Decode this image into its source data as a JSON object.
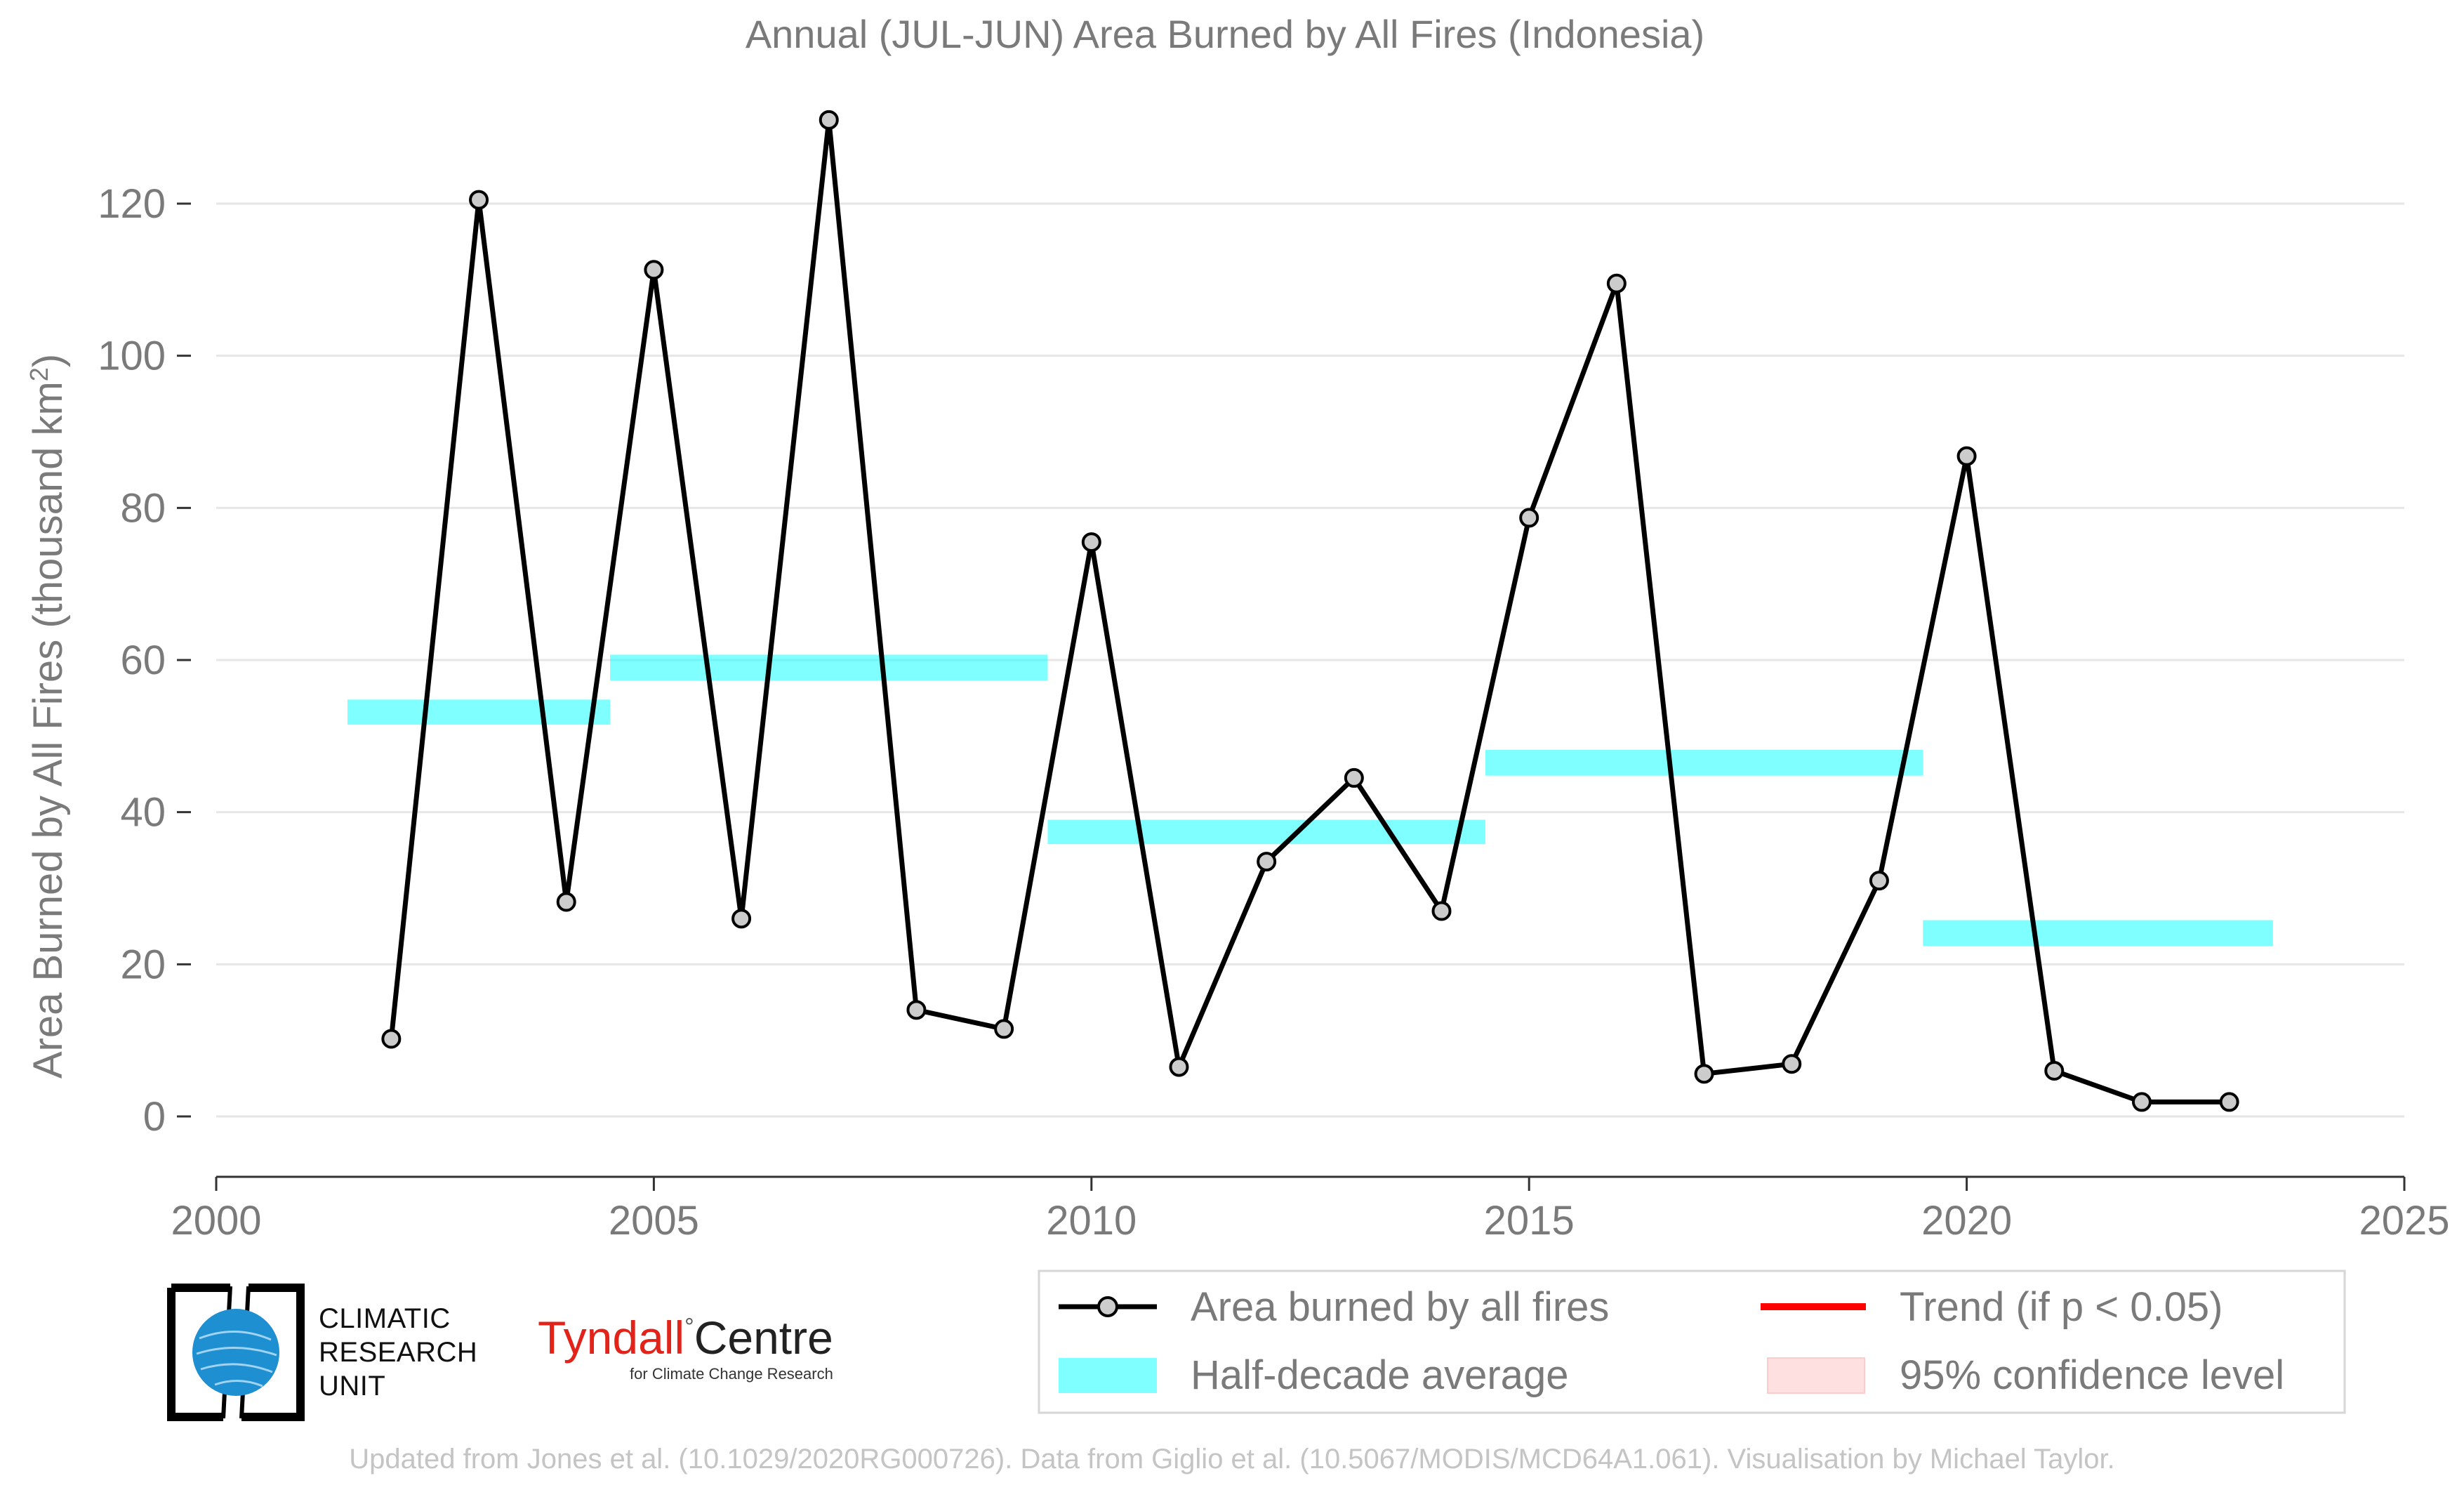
{
  "chart_data": {
    "type": "line",
    "title": "Annual (JUL-JUN) Area Burned by All Fires (Indonesia)",
    "xlabel": "",
    "ylabel": "Area Burned by All Fires (thousand km",
    "ylabel_sup": "2",
    "ylabel_close": ")",
    "xlim": [
      2000,
      2025
    ],
    "ylim": [
      -8,
      135
    ],
    "x_ticks": [
      2000,
      2005,
      2010,
      2015,
      2020,
      2025
    ],
    "y_ticks": [
      0,
      20,
      40,
      60,
      80,
      100,
      120
    ],
    "grid": "horizontal",
    "legend_position": "bottom-right",
    "series": [
      {
        "name": "Area burned by all fires",
        "color": "#000000",
        "x": [
          2002,
          2003,
          2004,
          2005,
          2006,
          2007,
          2008,
          2009,
          2010,
          2011,
          2012,
          2013,
          2014,
          2015,
          2016,
          2017,
          2018,
          2019,
          2020,
          2021,
          2022,
          2023
        ],
        "values": [
          10.2,
          120.5,
          28.2,
          111.3,
          26.0,
          131.0,
          14.0,
          11.5,
          75.5,
          6.5,
          33.5,
          44.5,
          27.0,
          78.7,
          109.5,
          5.6,
          6.9,
          31.0,
          86.8,
          6.0,
          1.9,
          1.9
        ]
      }
    ],
    "half_decade_average": {
      "name": "Half-decade average",
      "color": "#00ffff",
      "segments": [
        {
          "x_start": 2001.5,
          "x_end": 2004.5,
          "low": 51.5,
          "high": 54.8
        },
        {
          "x_start": 2004.5,
          "x_end": 2009.5,
          "low": 57.3,
          "high": 60.7
        },
        {
          "x_start": 2009.5,
          "x_end": 2014.5,
          "low": 35.8,
          "high": 39.0
        },
        {
          "x_start": 2014.5,
          "x_end": 2019.5,
          "low": 44.8,
          "high": 48.2
        },
        {
          "x_start": 2019.5,
          "x_end": 2023.5,
          "low": 22.4,
          "high": 25.8
        }
      ]
    },
    "legend": [
      {
        "key": "line-marker",
        "label": "Area burned by all fires",
        "color": "#000000"
      },
      {
        "key": "trend",
        "label": "Trend (if p < 0.05)",
        "color": "#ff0000"
      },
      {
        "key": "half-decade",
        "label": "Half-decade average",
        "color": "#00ffff"
      },
      {
        "key": "confidence",
        "label": "95% confidence level",
        "color": "#ffcccc"
      }
    ]
  },
  "logos": {
    "cru_line1": "CLIMATIC",
    "cru_line2": "RESEARCH",
    "cru_line3": "UNIT",
    "tyndall_red": "Tyndall",
    "tyndall_sup": "°",
    "tyndall_black": "Centre",
    "tyndall_sub": "for Climate Change Research"
  },
  "credit": "Updated from Jones et al. (10.1029/2020RG000726). Data from Giglio et al. (10.5067/MODIS/MCD64A1.061). Visualisation by Michael Taylor."
}
